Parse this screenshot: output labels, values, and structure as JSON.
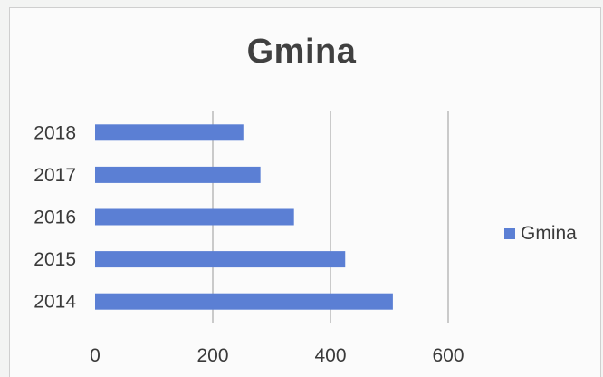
{
  "chart_data": {
    "type": "bar",
    "orientation": "horizontal",
    "title": "Gmina",
    "categories": [
      "2018",
      "2017",
      "2016",
      "2015",
      "2014"
    ],
    "series": [
      {
        "name": "Gmina",
        "values": [
          252,
          281,
          338,
          425,
          506
        ]
      }
    ],
    "xlim": [
      0,
      600
    ],
    "x_ticks": [
      "0",
      "200",
      "400",
      "600"
    ],
    "grid": "vertical",
    "legend_position": "right",
    "color": "#5b7fd4"
  }
}
